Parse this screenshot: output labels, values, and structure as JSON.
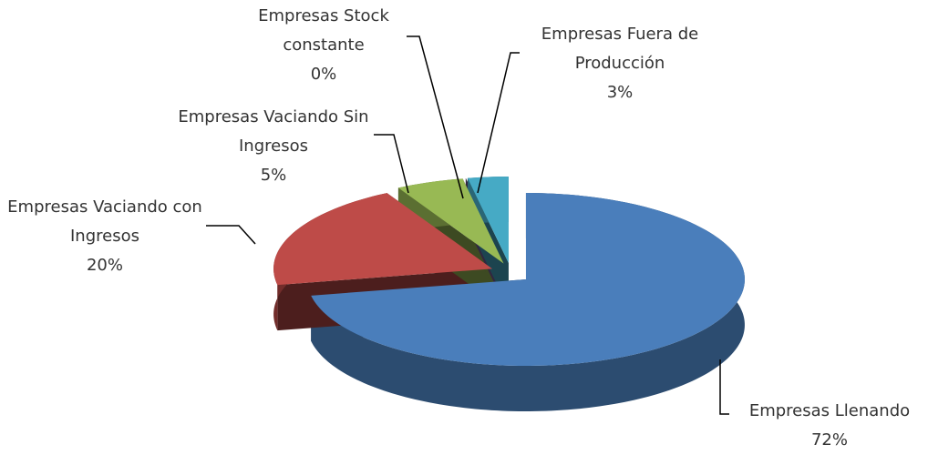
{
  "chart_data": {
    "type": "pie",
    "categories": [
      "Empresas Llenando",
      "Empresas Vaciando con Ingresos",
      "Empresas Vaciando Sin Ingresos",
      "Empresas Stock constante",
      "Empresas Fuera de Producción"
    ],
    "values": [
      72,
      20,
      5,
      0,
      3
    ],
    "value_labels": [
      "72%",
      "20%",
      "5%",
      "0%",
      "3%"
    ],
    "colors": [
      "#4a7ebb",
      "#be4b48",
      "#98b954",
      "#7d60a0",
      "#46aac5"
    ]
  }
}
